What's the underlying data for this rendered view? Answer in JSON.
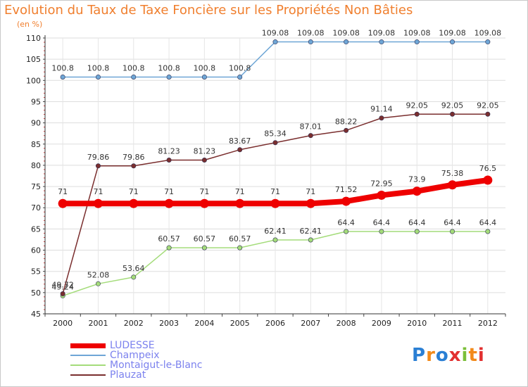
{
  "title": "Evolution du Taux de Taxe Foncière sur les Propriétés Non Bâties",
  "subtitle": "(en %)",
  "logo": "Proxiti",
  "chart_data": {
    "type": "line",
    "title": "Evolution du Taux de Taxe Foncière sur les Propriétés Non Bâties",
    "ylabel": "(en %)",
    "xlabel": "",
    "x": [
      "2000",
      "2001",
      "2002",
      "2003",
      "2004",
      "2005",
      "2006",
      "2007",
      "2008",
      "2009",
      "2010",
      "2011",
      "2012"
    ],
    "ylim": [
      45,
      110
    ],
    "yticks": [
      "45",
      "50",
      "55",
      "60",
      "65",
      "70",
      "75",
      "80",
      "85",
      "90",
      "95",
      "100",
      "105",
      "110"
    ],
    "legend_position": "bottom-left",
    "series": [
      {
        "name": "LUDESSE",
        "color": "#ee0000",
        "values": [
          71,
          71,
          71,
          71,
          71,
          71,
          71,
          71,
          71.52,
          72.95,
          73.9,
          75.38,
          76.5
        ],
        "labels": [
          "71",
          "71",
          "71",
          "71",
          "71",
          "71",
          "71",
          "71",
          "71.52",
          "72.95",
          "73.9",
          "75.38",
          "76.5"
        ]
      },
      {
        "name": "Champeix",
        "color": "#6ea6d6",
        "values": [
          100.8,
          100.8,
          100.8,
          100.8,
          100.8,
          100.8,
          109.08,
          109.08,
          109.08,
          109.08,
          109.08,
          109.08,
          109.08
        ],
        "labels": [
          "100.8",
          "100.8",
          "100.8",
          "100.8",
          "100.8",
          "100.8",
          "109.08",
          "109.08",
          "109.08",
          "109.08",
          "109.08",
          "109.08",
          "109.08"
        ]
      },
      {
        "name": "Montaigut-le-Blanc",
        "color": "#a4dc7a",
        "values": [
          49.24,
          52.08,
          53.64,
          60.57,
          60.57,
          60.57,
          62.41,
          62.41,
          64.4,
          64.4,
          64.4,
          64.4,
          64.4
        ],
        "labels": [
          "49.24",
          "52.08",
          "53.64",
          "60.57",
          "60.57",
          "60.57",
          "62.41",
          "62.41",
          "64.4",
          "64.4",
          "64.4",
          "64.4",
          "64.4"
        ]
      },
      {
        "name": "Plauzat",
        "color": "#7a2e2e",
        "values": [
          49.72,
          79.86,
          79.86,
          81.23,
          81.23,
          83.67,
          85.34,
          87.01,
          88.22,
          91.14,
          92.05,
          92.05,
          92.05
        ],
        "labels": [
          "49.72",
          "79.86",
          "79.86",
          "81.23",
          "81.23",
          "83.67",
          "85.34",
          "87.01",
          "88.22",
          "91.14",
          "92.05",
          "92.05",
          "92.05"
        ]
      }
    ]
  }
}
